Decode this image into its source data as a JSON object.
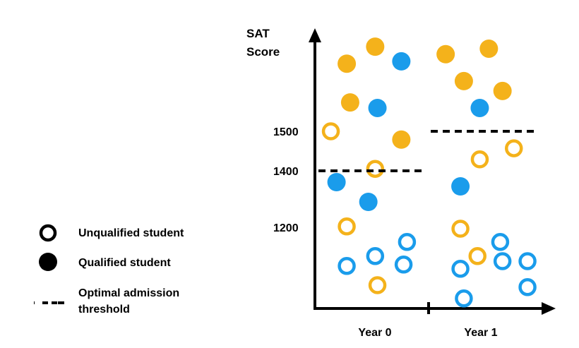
{
  "chart_data": {
    "type": "scatter",
    "title": "",
    "ylabel": "SAT Score",
    "yticks": [
      1500,
      1400,
      1200
    ],
    "xticks": [
      "Year 0",
      "Year 1"
    ],
    "colors": {
      "orange": "#F4B21B",
      "blue": "#1A9CEB"
    },
    "thresholds": [
      {
        "group": "Year 0",
        "value": 1400
      },
      {
        "group": "Year 1",
        "value": 1500
      }
    ],
    "points": [
      {
        "x": 0.28,
        "y": 1671,
        "color": "orange",
        "qualified": true
      },
      {
        "x": 0.53,
        "y": 1714,
        "color": "orange",
        "qualified": true
      },
      {
        "x": 0.31,
        "y": 1573,
        "color": "orange",
        "qualified": true
      },
      {
        "x": 0.76,
        "y": 1479,
        "color": "orange",
        "qualified": true
      },
      {
        "x": 0.76,
        "y": 1677,
        "color": "blue",
        "qualified": true
      },
      {
        "x": 0.55,
        "y": 1559,
        "color": "blue",
        "qualified": true
      },
      {
        "x": 0.19,
        "y": 1360,
        "color": "blue",
        "qualified": true
      },
      {
        "x": 0.47,
        "y": 1290,
        "color": "blue",
        "qualified": true
      },
      {
        "x": 0.14,
        "y": 1500,
        "color": "orange",
        "qualified": false
      },
      {
        "x": 0.53,
        "y": 1405,
        "color": "orange",
        "qualified": false
      },
      {
        "x": 0.28,
        "y": 1203,
        "color": "orange",
        "qualified": false
      },
      {
        "x": 0.55,
        "y": 995,
        "color": "orange",
        "qualified": false
      },
      {
        "x": 0.28,
        "y": 1063,
        "color": "blue",
        "qualified": false
      },
      {
        "x": 0.53,
        "y": 1098,
        "color": "blue",
        "qualified": false
      },
      {
        "x": 0.81,
        "y": 1148,
        "color": "blue",
        "qualified": false
      },
      {
        "x": 0.78,
        "y": 1068,
        "color": "blue",
        "qualified": false
      },
      {
        "x": 1.15,
        "y": 1695,
        "color": "orange",
        "qualified": true
      },
      {
        "x": 1.53,
        "y": 1709,
        "color": "orange",
        "qualified": true
      },
      {
        "x": 1.31,
        "y": 1627,
        "color": "orange",
        "qualified": true
      },
      {
        "x": 1.65,
        "y": 1602,
        "color": "orange",
        "qualified": true
      },
      {
        "x": 1.45,
        "y": 1559,
        "color": "blue",
        "qualified": true
      },
      {
        "x": 1.28,
        "y": 1345,
        "color": "blue",
        "qualified": true
      },
      {
        "x": 1.45,
        "y": 1429,
        "color": "orange",
        "qualified": false
      },
      {
        "x": 1.75,
        "y": 1457,
        "color": "orange",
        "qualified": false
      },
      {
        "x": 1.28,
        "y": 1195,
        "color": "orange",
        "qualified": false
      },
      {
        "x": 1.43,
        "y": 1098,
        "color": "orange",
        "qualified": false
      },
      {
        "x": 1.28,
        "y": 1053,
        "color": "blue",
        "qualified": false
      },
      {
        "x": 1.63,
        "y": 1148,
        "color": "blue",
        "qualified": false
      },
      {
        "x": 1.65,
        "y": 1080,
        "color": "blue",
        "qualified": false
      },
      {
        "x": 1.87,
        "y": 1080,
        "color": "blue",
        "qualified": false
      },
      {
        "x": 1.87,
        "y": 988,
        "color": "blue",
        "qualified": false
      },
      {
        "x": 1.31,
        "y": 948,
        "color": "blue",
        "qualified": false
      }
    ],
    "legend": {
      "position": "left",
      "entries": [
        {
          "marker": "hollow-circle",
          "label": "Unqualified student"
        },
        {
          "marker": "filled-circle",
          "label": "Qualified student"
        },
        {
          "marker": "dashed-line",
          "label_line1": "Optimal admission",
          "label_line2": "threshold"
        }
      ]
    }
  }
}
